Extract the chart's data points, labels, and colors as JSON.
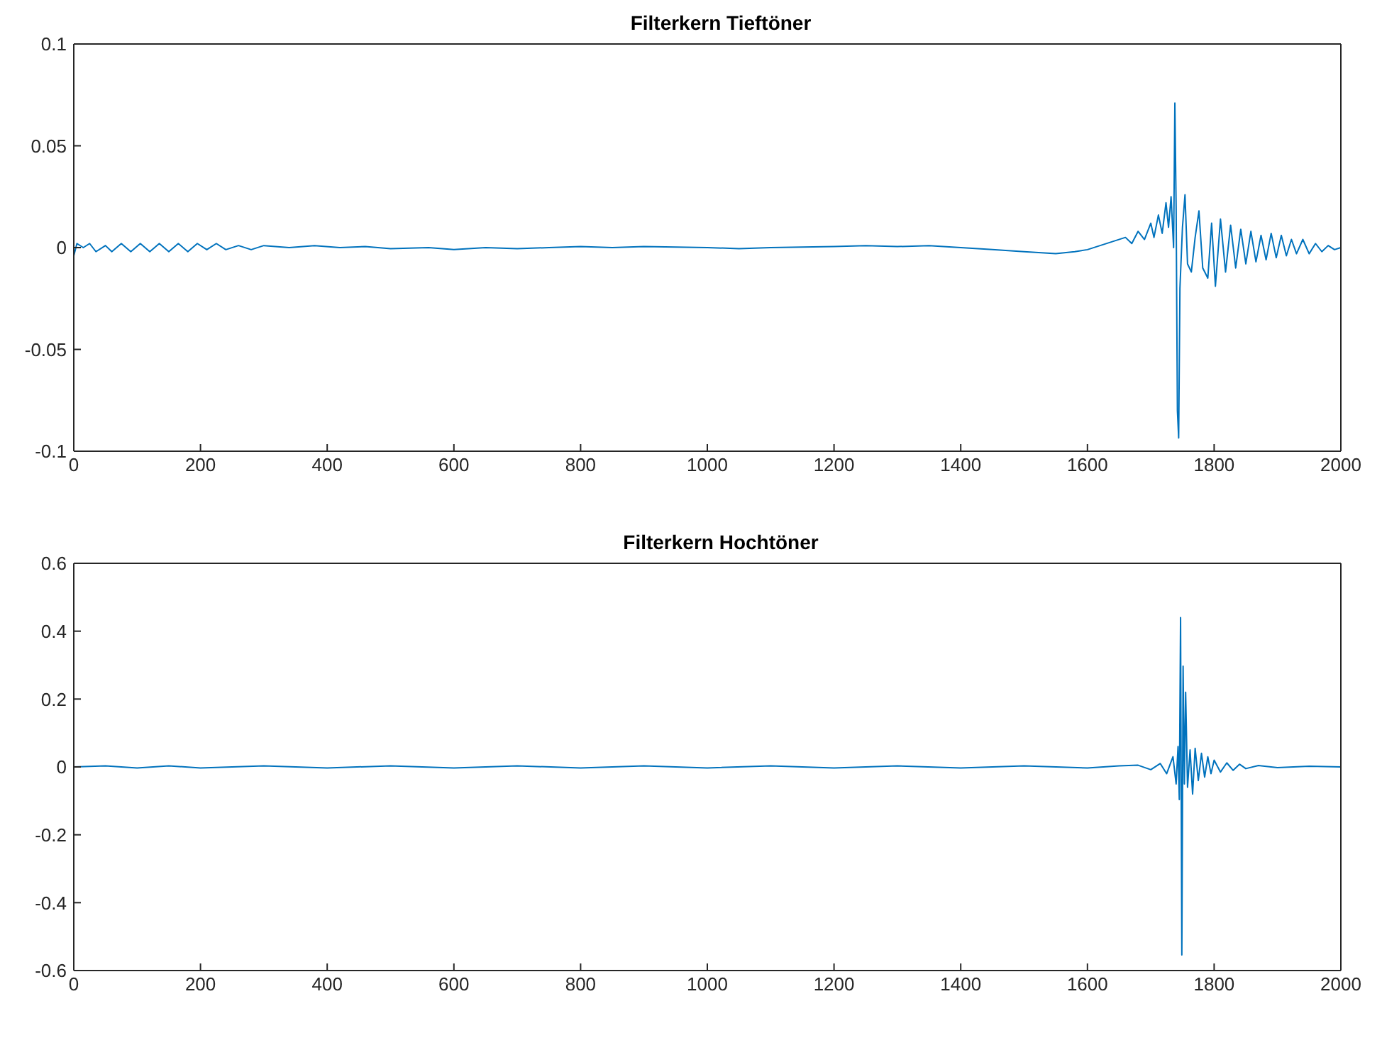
{
  "chart_data": [
    {
      "type": "line",
      "title": "Filterkern Tieftöner",
      "color": "#0072bd",
      "marker": "none",
      "grid": false,
      "legend": false,
      "xlim": [
        0,
        2000
      ],
      "xticks": [
        0,
        200,
        400,
        600,
        800,
        1000,
        1200,
        1400,
        1600,
        1800,
        2000
      ],
      "ylim": [
        -0.1,
        0.1
      ],
      "yticks": [
        -0.1,
        -0.05,
        0,
        0.05,
        0.1
      ],
      "x": [
        0,
        5,
        15,
        25,
        35,
        50,
        60,
        75,
        90,
        105,
        120,
        135,
        150,
        165,
        180,
        195,
        210,
        225,
        240,
        260,
        280,
        300,
        340,
        380,
        420,
        460,
        500,
        560,
        600,
        650,
        700,
        750,
        800,
        850,
        900,
        1000,
        1050,
        1100,
        1200,
        1250,
        1300,
        1350,
        1400,
        1450,
        1500,
        1550,
        1580,
        1600,
        1620,
        1640,
        1660,
        1670,
        1680,
        1690,
        1700,
        1705,
        1712,
        1718,
        1724,
        1728,
        1732,
        1736,
        1738,
        1740,
        1742,
        1744,
        1746,
        1750,
        1754,
        1758,
        1764,
        1770,
        1776,
        1782,
        1790,
        1796,
        1802,
        1810,
        1818,
        1826,
        1834,
        1842,
        1850,
        1858,
        1866,
        1874,
        1882,
        1890,
        1898,
        1906,
        1914,
        1922,
        1930,
        1940,
        1950,
        1960,
        1970,
        1980,
        1990,
        2000
      ],
      "values": [
        -0.004,
        0.002,
        0,
        0.002,
        -0.002,
        0.001,
        -0.002,
        0.002,
        -0.002,
        0.002,
        -0.002,
        0.002,
        -0.002,
        0.002,
        -0.002,
        0.002,
        -0.001,
        0.002,
        -0.001,
        0.001,
        -0.001,
        0.001,
        0,
        0.001,
        0,
        0.0005,
        -0.0005,
        0,
        -0.001,
        0,
        -0.0005,
        0,
        0.0005,
        0,
        0.0005,
        0,
        -0.0005,
        0,
        0.0005,
        0.001,
        0.0005,
        0.001,
        0,
        -0.001,
        -0.002,
        -0.003,
        -0.002,
        -0.001,
        0.001,
        0.003,
        0.005,
        0.002,
        0.008,
        0.004,
        0.012,
        0.005,
        0.016,
        0.007,
        0.022,
        0.01,
        0.025,
        0,
        0.071,
        0.02,
        -0.08,
        -0.0935,
        -0.02,
        0.01,
        0.026,
        -0.008,
        -0.012,
        0.005,
        0.018,
        -0.01,
        -0.015,
        0.012,
        -0.019,
        0.014,
        -0.012,
        0.011,
        -0.01,
        0.009,
        -0.008,
        0.008,
        -0.007,
        0.006,
        -0.006,
        0.007,
        -0.005,
        0.006,
        -0.004,
        0.004,
        -0.003,
        0.004,
        -0.003,
        0.002,
        -0.002,
        0.001,
        -0.001,
        0
      ]
    },
    {
      "type": "line",
      "title": "Filterkern Hochtöner",
      "color": "#0072bd",
      "marker": "none",
      "grid": false,
      "legend": false,
      "xlim": [
        0,
        2000
      ],
      "xticks": [
        0,
        200,
        400,
        600,
        800,
        1000,
        1200,
        1400,
        1600,
        1800,
        2000
      ],
      "ylim": [
        -0.6,
        0.6
      ],
      "yticks": [
        -0.6,
        -0.4,
        -0.2,
        0,
        0.2,
        0.4,
        0.6
      ],
      "x": [
        0,
        50,
        100,
        150,
        200,
        300,
        400,
        500,
        600,
        700,
        800,
        900,
        1000,
        1100,
        1200,
        1300,
        1400,
        1500,
        1600,
        1650,
        1680,
        1700,
        1715,
        1725,
        1735,
        1740,
        1743,
        1745,
        1747,
        1749,
        1751,
        1753,
        1755,
        1758,
        1762,
        1766,
        1770,
        1775,
        1780,
        1785,
        1790,
        1795,
        1800,
        1810,
        1820,
        1830,
        1840,
        1850,
        1870,
        1900,
        1950,
        2000
      ],
      "values": [
        0,
        0.003,
        -0.003,
        0.003,
        -0.003,
        0.003,
        -0.003,
        0.003,
        -0.003,
        0.003,
        -0.003,
        0.003,
        -0.003,
        0.003,
        -0.003,
        0.003,
        -0.003,
        0.003,
        -0.003,
        0.003,
        0.005,
        -0.008,
        0.01,
        -0.02,
        0.03,
        -0.05,
        0.06,
        -0.096,
        0.44,
        -0.554,
        0.297,
        -0.05,
        0.22,
        -0.06,
        0.05,
        -0.08,
        0.055,
        -0.04,
        0.04,
        -0.03,
        0.03,
        -0.02,
        0.02,
        -0.015,
        0.012,
        -0.01,
        0.008,
        -0.005,
        0.004,
        -0.002,
        0.002,
        0
      ]
    }
  ]
}
